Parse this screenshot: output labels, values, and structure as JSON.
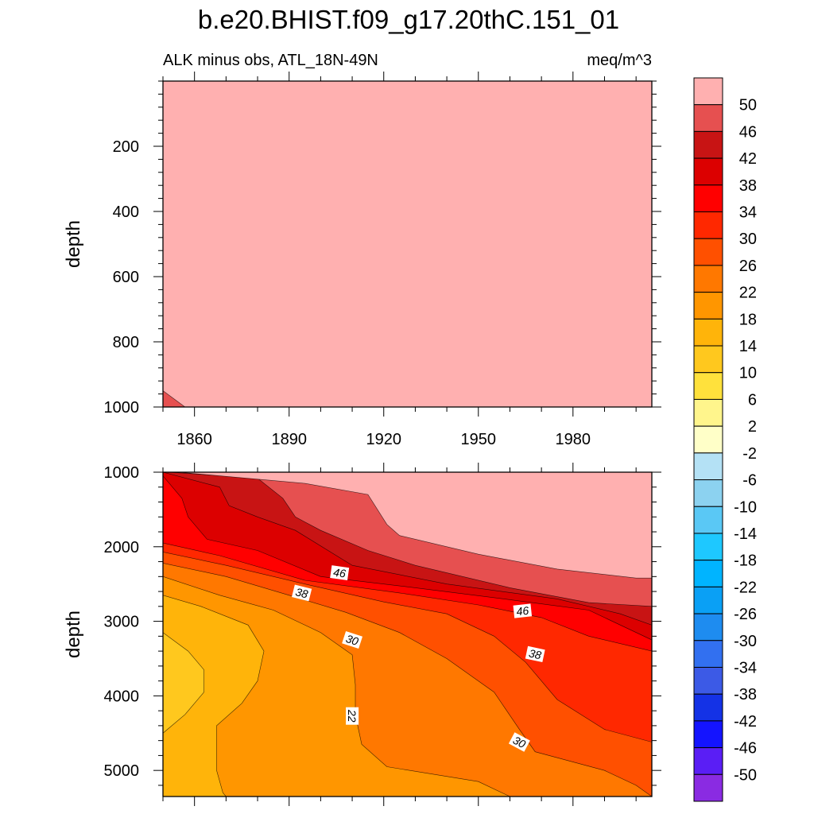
{
  "figure": {
    "title": "b.e20.BHIST.f09_g17.20thC.151_01",
    "subtitle_left": "ALK minus obs, ATL_18N-49N",
    "subtitle_right": "meq/m^3"
  },
  "colorbar": {
    "colors": [
      "#8a2be2",
      "#5a1ef5",
      "#1414ff",
      "#1432e6",
      "#3c5ae6",
      "#3270f0",
      "#1e8cf0",
      "#0aa0f5",
      "#00b4ff",
      "#1ec8ff",
      "#5ac8f5",
      "#8cd2f0",
      "#b4e1f5",
      "#ffffc8",
      "#fff58c",
      "#ffe13c",
      "#ffc81e",
      "#ffb40a",
      "#ff9600",
      "#ff7800",
      "#ff5000",
      "#ff2800",
      "#ff0000",
      "#dc0000",
      "#c81414",
      "#e65050",
      "#ffb0b0"
    ],
    "labels": [
      "-50",
      "-46",
      "-42",
      "-38",
      "-34",
      "-30",
      "-26",
      "-22",
      "-18",
      "-14",
      "-10",
      "-6",
      "-2",
      "2",
      "6",
      "10",
      "14",
      "18",
      "22",
      "26",
      "30",
      "34",
      "38",
      "42",
      "46",
      "50"
    ]
  },
  "chart_data": [
    {
      "type": "heatmap",
      "panel": "upper",
      "title": "ALK minus obs, ATL_18N-49N",
      "units": "meq/m^3",
      "ylabel": "depth",
      "xlim": [
        1850,
        2005
      ],
      "ylim": [
        1000,
        0
      ],
      "x_ticks": [
        "1860",
        "1890",
        "1920",
        "1950",
        "1980"
      ],
      "y_ticks": [
        "200",
        "400",
        "600",
        "800",
        "1000"
      ],
      "regions": [
        {
          "level": ">50",
          "color": "#ffb0b0",
          "points": [
            [
              1850,
              0
            ],
            [
              2005,
              0
            ],
            [
              2005,
              1000
            ],
            [
              1850,
              1000
            ]
          ]
        },
        {
          "level": "46-50",
          "color": "#e65050",
          "points": [
            [
              1850,
              950
            ],
            [
              1857,
              1000
            ],
            [
              1850,
              1000
            ]
          ]
        }
      ]
    },
    {
      "type": "heatmap",
      "panel": "lower",
      "ylabel": "depth",
      "xlim": [
        1850,
        2005
      ],
      "ylim": [
        5350,
        1000
      ],
      "x_ticks": [
        "1860",
        "1890",
        "1920",
        "1950",
        "1980"
      ],
      "y_ticks": [
        "1000",
        "2000",
        "3000",
        "4000",
        "5000"
      ],
      "contour_labels": [
        {
          "text": "46",
          "x": 1906,
          "y": 2350,
          "angle": 8
        },
        {
          "text": "38",
          "x": 1894,
          "y": 2620,
          "angle": 14
        },
        {
          "text": "30",
          "x": 1910,
          "y": 3250,
          "angle": 18
        },
        {
          "text": "22",
          "x": 1910,
          "y": 4270,
          "angle": 90
        },
        {
          "text": "46",
          "x": 1964,
          "y": 2860,
          "angle": -6
        },
        {
          "text": "38",
          "x": 1968,
          "y": 3440,
          "angle": 12
        },
        {
          "text": "30",
          "x": 1963,
          "y": 4620,
          "angle": 28
        }
      ],
      "regions": [
        {
          "level": "14-18",
          "color": "#ffb40a",
          "points": [
            [
              1850,
              1000
            ],
            [
              2005,
              1000
            ],
            [
              2005,
              5350
            ],
            [
              1850,
              5350
            ]
          ]
        },
        {
          "level": "10-14",
          "color": "#ffc81e",
          "points": [
            [
              1850,
              3150
            ],
            [
              1858,
              3400
            ],
            [
              1863,
              3650
            ],
            [
              1863,
              3950
            ],
            [
              1857,
              4250
            ],
            [
              1850,
              4500
            ]
          ]
        },
        {
          "level": "18-22",
          "color": "#ff9600",
          "points": [
            [
              1850,
              2650
            ],
            [
              1862,
              2800
            ],
            [
              1877,
              3050
            ],
            [
              1882,
              3400
            ],
            [
              1880,
              3800
            ],
            [
              1875,
              4100
            ],
            [
              1867,
              4400
            ],
            [
              1867,
              4700
            ],
            [
              1867,
              5000
            ],
            [
              1869,
              5300
            ],
            [
              1870,
              5350
            ],
            [
              2005,
              5350
            ],
            [
              2005,
              1000
            ],
            [
              1850,
              1000
            ]
          ]
        },
        {
          "level": "22-26",
          "color": "#ff7800",
          "points": [
            [
              1850,
              2400
            ],
            [
              1868,
              2650
            ],
            [
              1885,
              2850
            ],
            [
              1900,
              3150
            ],
            [
              1910,
              3450
            ],
            [
              1911,
              3850
            ],
            [
              1911,
              4250
            ],
            [
              1913,
              4650
            ],
            [
              1921,
              4950
            ],
            [
              1950,
              5150
            ],
            [
              1960,
              5350
            ],
            [
              2005,
              5350
            ],
            [
              2005,
              1000
            ],
            [
              1850,
              1000
            ]
          ]
        },
        {
          "level": "26-30",
          "color": "#ff5000",
          "points": [
            [
              1850,
              2220
            ],
            [
              1870,
              2400
            ],
            [
              1890,
              2650
            ],
            [
              1908,
              2880
            ],
            [
              1925,
              3150
            ],
            [
              1940,
              3500
            ],
            [
              1955,
              3950
            ],
            [
              1963,
              4450
            ],
            [
              1968,
              4750
            ],
            [
              1990,
              5000
            ],
            [
              2000,
              5200
            ],
            [
              2005,
              5350
            ],
            [
              2005,
              1000
            ],
            [
              1850,
              1000
            ]
          ]
        },
        {
          "level": "30-34",
          "color": "#ff2800",
          "points": [
            [
              1850,
              2070
            ],
            [
              1870,
              2250
            ],
            [
              1895,
              2500
            ],
            [
              1920,
              2740
            ],
            [
              1940,
              2900
            ],
            [
              1955,
              3200
            ],
            [
              1965,
              3550
            ],
            [
              1975,
              4050
            ],
            [
              1990,
              4450
            ],
            [
              2005,
              4620
            ],
            [
              2005,
              1000
            ],
            [
              1850,
              1000
            ]
          ]
        },
        {
          "level": "34-38",
          "color": "#ff0000",
          "points": [
            [
              1850,
              1950
            ],
            [
              1868,
              2120
            ],
            [
              1895,
              2450
            ],
            [
              1925,
              2620
            ],
            [
              1950,
              2780
            ],
            [
              1970,
              2950
            ],
            [
              1985,
              3200
            ],
            [
              2005,
              3400
            ],
            [
              2005,
              1000
            ],
            [
              1850,
              1000
            ]
          ]
        },
        {
          "level": "38-42",
          "color": "#dc0000",
          "points": [
            [
              1850,
              1050
            ],
            [
              1856,
              1350
            ],
            [
              1858,
              1600
            ],
            [
              1864,
              1900
            ],
            [
              1880,
              2050
            ],
            [
              1900,
              2400
            ],
            [
              1930,
              2550
            ],
            [
              1960,
              2710
            ],
            [
              1985,
              2850
            ],
            [
              2005,
              3250
            ],
            [
              2005,
              1000
            ],
            [
              1850,
              1000
            ]
          ]
        },
        {
          "level": "42-46",
          "color": "#c81414",
          "points": [
            [
              1850,
              1000
            ],
            [
              1868,
              1200
            ],
            [
              1871,
              1450
            ],
            [
              1880,
              1600
            ],
            [
              1892,
              1780
            ],
            [
              1910,
              2250
            ],
            [
              1940,
              2500
            ],
            [
              1975,
              2700
            ],
            [
              1995,
              2900
            ],
            [
              2005,
              3050
            ],
            [
              2005,
              1000
            ]
          ]
        },
        {
          "level": "46-50",
          "color": "#e65050",
          "points": [
            [
              1852,
              1000
            ],
            [
              1880,
              1080
            ],
            [
              1888,
              1350
            ],
            [
              1892,
              1600
            ],
            [
              1900,
              1780
            ],
            [
              1915,
              2050
            ],
            [
              1930,
              2250
            ],
            [
              1960,
              2550
            ],
            [
              1985,
              2750
            ],
            [
              2005,
              2800
            ],
            [
              2005,
              1000
            ]
          ]
        },
        {
          "level": ">50",
          "color": "#ffb0b0",
          "points": [
            [
              1855,
              1000
            ],
            [
              1895,
              1150
            ],
            [
              1915,
              1300
            ],
            [
              1921,
              1700
            ],
            [
              1925,
              1850
            ],
            [
              1950,
              2100
            ],
            [
              1975,
              2300
            ],
            [
              2000,
              2420
            ],
            [
              2005,
              2420
            ],
            [
              2005,
              1000
            ]
          ]
        }
      ]
    }
  ]
}
